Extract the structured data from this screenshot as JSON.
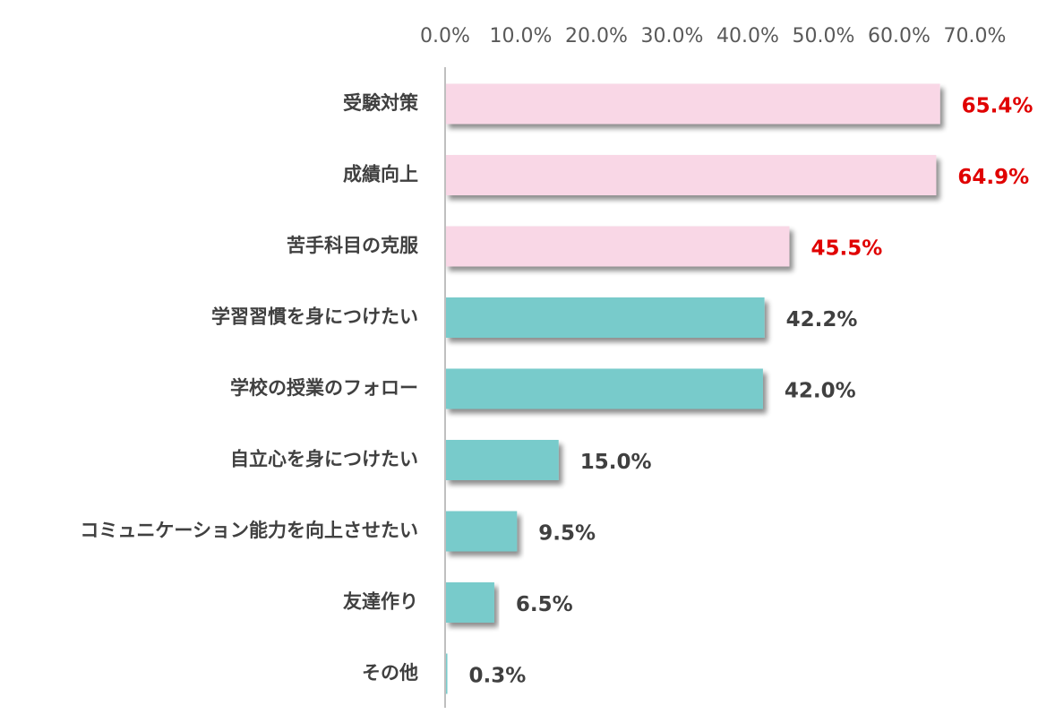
{
  "chart_data": {
    "type": "bar",
    "orientation": "horizontal",
    "title": "",
    "xlabel": "",
    "ylabel": "",
    "xlim": [
      0,
      70
    ],
    "x_ticks": [
      "0.0%",
      "10.0%",
      "20.0%",
      "30.0%",
      "40.0%",
      "50.0%",
      "60.0%",
      "70.0%"
    ],
    "x_tick_values": [
      0,
      10,
      20,
      30,
      40,
      50,
      60,
      70
    ],
    "axis_position": "top",
    "grid": false,
    "legend": "none",
    "categories": [
      "受験対策",
      "成績向上",
      "苦手科目の克服",
      "学習習慣を身につけたい",
      "学校の授業のフォロー",
      "自立心を身につけたい",
      "コミュニケーション能力を向上させたい",
      "友達作り",
      "その他"
    ],
    "values": [
      65.4,
      64.9,
      45.5,
      42.2,
      42.0,
      15.0,
      9.5,
      6.5,
      0.3
    ],
    "value_labels": [
      "65.4%",
      "64.9%",
      "45.5%",
      "42.2%",
      "42.0%",
      "15.0%",
      "9.5%",
      "6.5%",
      "0.3%"
    ],
    "highlighted": [
      true,
      true,
      true,
      false,
      false,
      false,
      false,
      false,
      false
    ],
    "colors": {
      "highlight_bar": "#F9D7E6",
      "normal_bar": "#78CBCB",
      "highlight_label": "#E00000",
      "normal_label": "#404040",
      "axis_line": "#BFBFBF",
      "shadow": "#A6A6A6"
    }
  }
}
